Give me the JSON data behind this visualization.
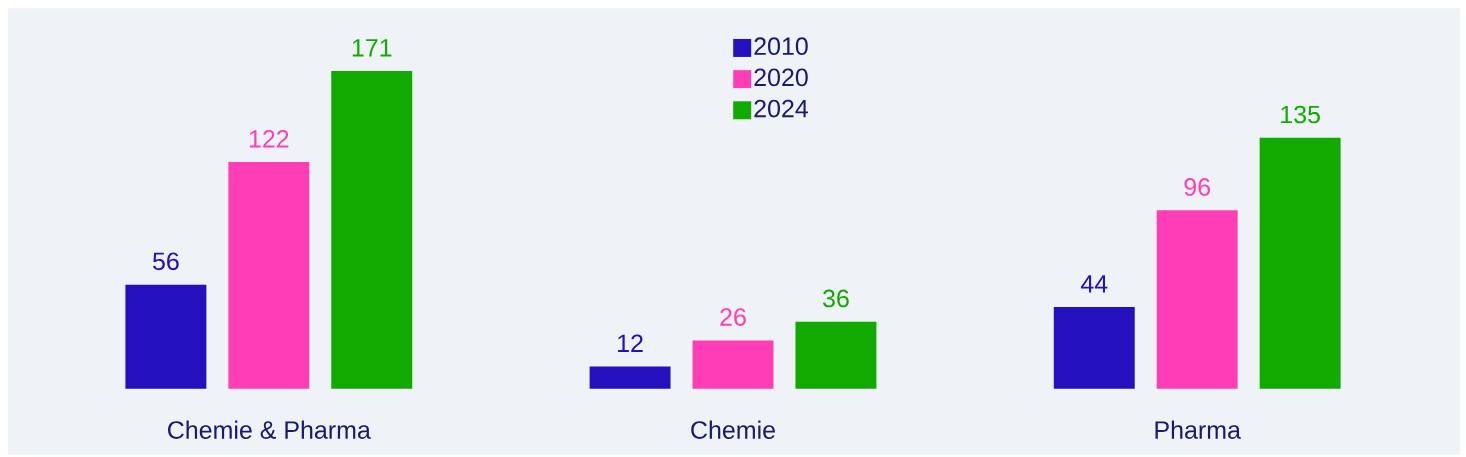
{
  "chart_data": {
    "type": "bar",
    "categories": [
      "Chemie & Pharma",
      "Chemie",
      "Pharma"
    ],
    "series": [
      {
        "name": "2010",
        "color": "#2410bf",
        "values": [
          56,
          12,
          44
        ]
      },
      {
        "name": "2020",
        "color": "#ff3eb5",
        "values": [
          122,
          26,
          96
        ]
      },
      {
        "name": "2024",
        "color": "#11aa00",
        "values": [
          171,
          36,
          135
        ]
      }
    ],
    "data_labels": true,
    "legend": "top"
  }
}
